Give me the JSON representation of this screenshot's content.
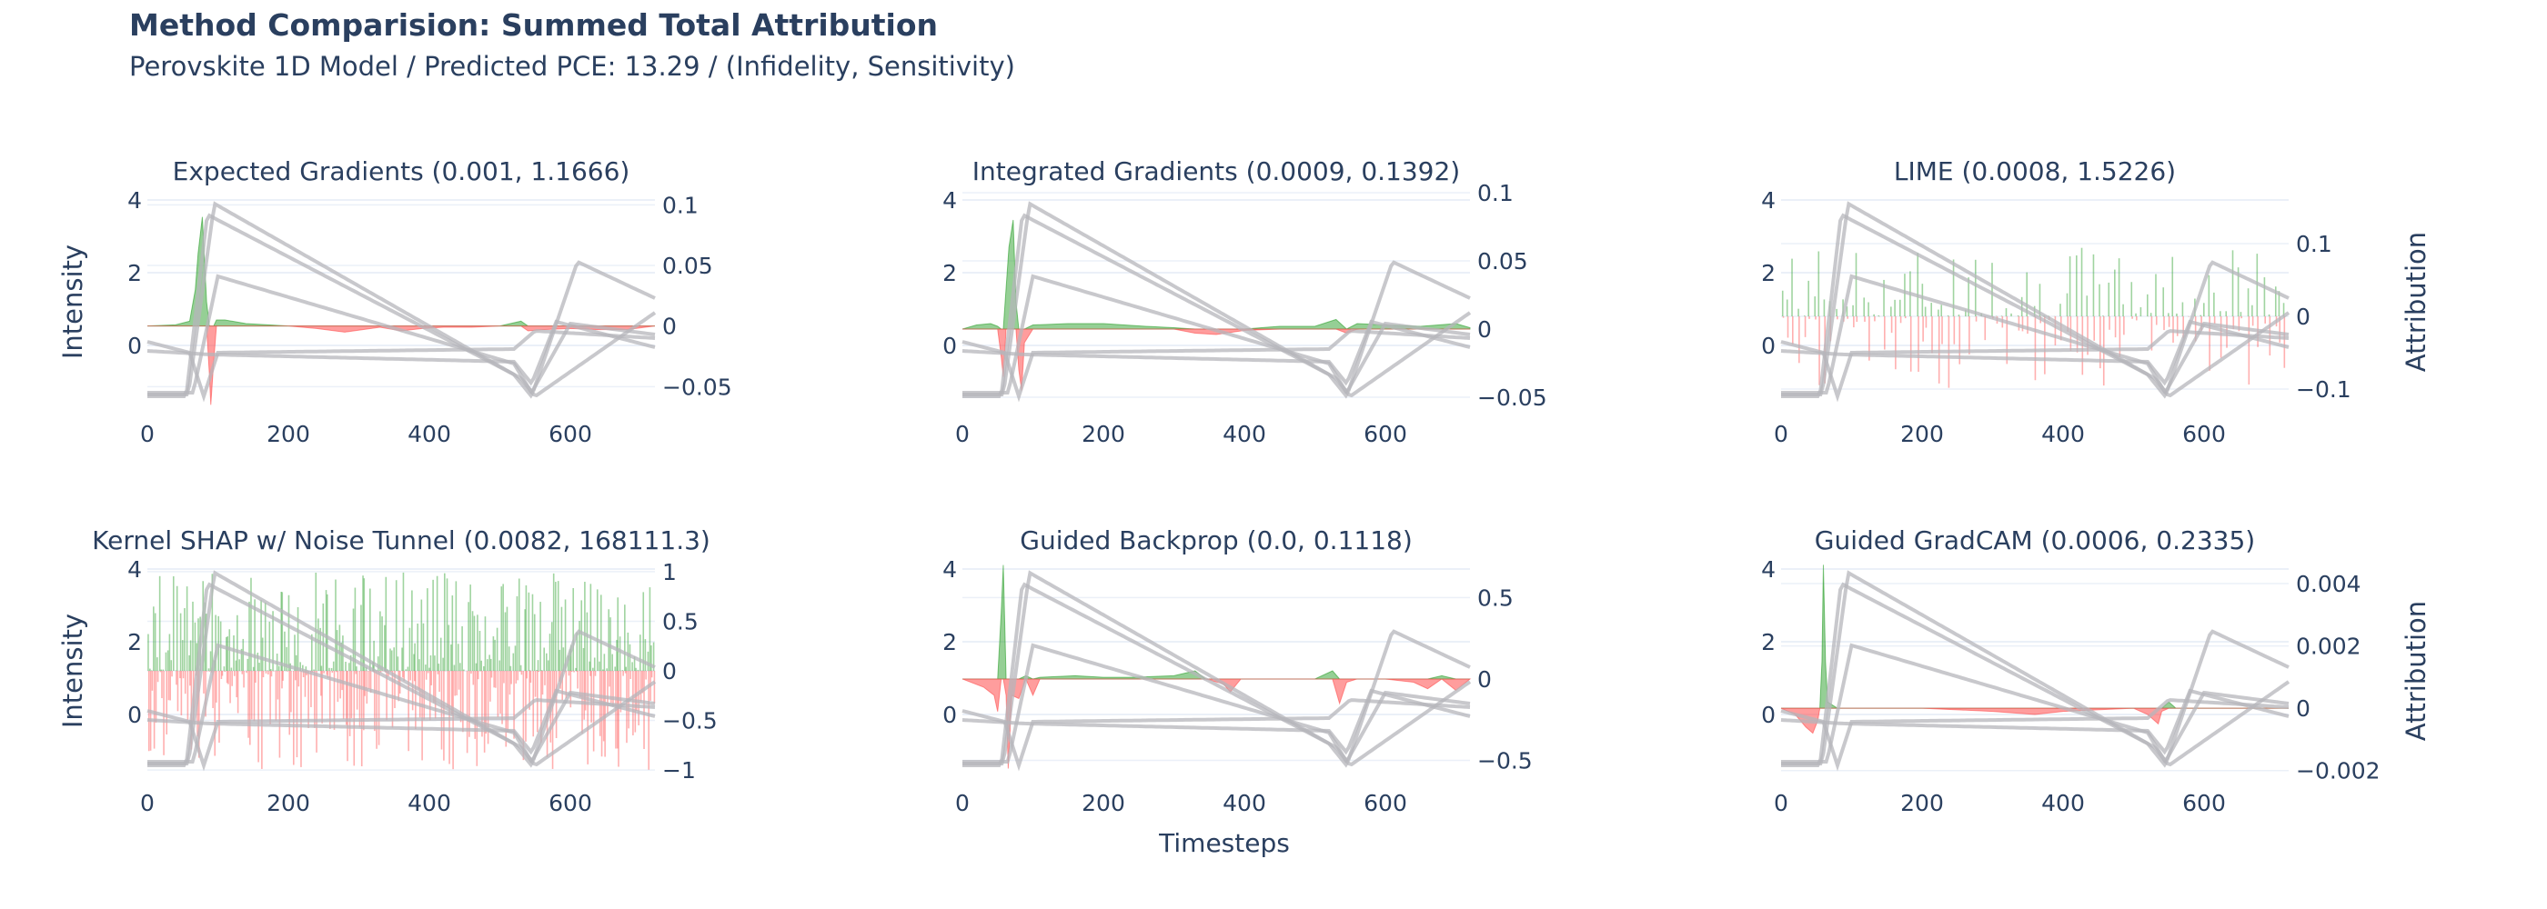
{
  "title": "Method Comparision: Summed Total Attribution",
  "subtitle": "Perovskite 1D Model / Predicted PCE: 13.29 / (Infidelity, Sensitivity)",
  "x_axis_label": "Timesteps",
  "colors": {
    "text": "#2a3f5f",
    "positive": "#2ca02c",
    "negative": "#ff4d4d",
    "curves": "#b5b5bb",
    "grid": "#ebf0f8"
  },
  "chart_data": [
    {
      "type": "area",
      "title": "Expected Gradients (0.001, 1.1666)",
      "left_ylabel": "Intensity",
      "right_ylabel": "",
      "x_ticks": [
        "0",
        "200",
        "400",
        "600"
      ],
      "left_ticks": [
        "4",
        "2",
        "0"
      ],
      "right_ticks": [
        "0.1",
        "0.05",
        "0",
        "−0.05"
      ],
      "xlim": [
        0,
        720
      ],
      "left_ylim": [
        -1.8,
        4.2
      ],
      "right_ylim": [
        -0.07,
        0.11
      ],
      "style": "area",
      "attribution_series": [
        [
          0,
          0
        ],
        [
          40,
          0.001
        ],
        [
          60,
          0.004
        ],
        [
          68,
          0.03
        ],
        [
          72,
          0.06
        ],
        [
          78,
          0.09
        ],
        [
          84,
          0.02
        ],
        [
          88,
          -0.04
        ],
        [
          90,
          -0.065
        ],
        [
          94,
          -0.03
        ],
        [
          98,
          0.005
        ],
        [
          110,
          0.005
        ],
        [
          140,
          0.002
        ],
        [
          200,
          0.0
        ],
        [
          240,
          -0.002
        ],
        [
          280,
          -0.005
        ],
        [
          330,
          -0.001
        ],
        [
          360,
          -0.004
        ],
        [
          390,
          -0.002
        ],
        [
          420,
          -0.001
        ],
        [
          460,
          -0.001
        ],
        [
          500,
          0.0
        ],
        [
          530,
          0.004
        ],
        [
          540,
          -0.004
        ],
        [
          560,
          -0.003
        ],
        [
          600,
          -0.002
        ],
        [
          640,
          -0.003
        ],
        [
          680,
          -0.003
        ],
        [
          720,
          0.0
        ]
      ]
    },
    {
      "type": "area",
      "title": "Integrated Gradients (0.0009, 0.1392)",
      "left_ylabel": "",
      "right_ylabel": "",
      "x_ticks": [
        "0",
        "200",
        "400",
        "600"
      ],
      "left_ticks": [
        "4",
        "2",
        "0"
      ],
      "right_ticks": [
        "0.1",
        "0.05",
        "0",
        "−0.05"
      ],
      "xlim": [
        0,
        720
      ],
      "left_ylim": [
        -1.8,
        4.2
      ],
      "right_ylim": [
        -0.06,
        0.1
      ],
      "style": "area",
      "attribution_series": [
        [
          0,
          0
        ],
        [
          20,
          0.003
        ],
        [
          40,
          0.004
        ],
        [
          50,
          0.002
        ],
        [
          55,
          -0.02
        ],
        [
          58,
          -0.035
        ],
        [
          62,
          0.03
        ],
        [
          66,
          0.06
        ],
        [
          72,
          0.08
        ],
        [
          76,
          0.02
        ],
        [
          80,
          -0.03
        ],
        [
          84,
          -0.045
        ],
        [
          88,
          -0.01
        ],
        [
          100,
          0.003
        ],
        [
          150,
          0.004
        ],
        [
          200,
          0.004
        ],
        [
          260,
          0.002
        ],
        [
          300,
          0.001
        ],
        [
          330,
          -0.003
        ],
        [
          360,
          -0.004
        ],
        [
          400,
          -0.001
        ],
        [
          450,
          0.002
        ],
        [
          500,
          0.002
        ],
        [
          530,
          0.007
        ],
        [
          545,
          -0.003
        ],
        [
          560,
          0.004
        ],
        [
          600,
          0.003
        ],
        [
          650,
          0.002
        ],
        [
          700,
          0.004
        ],
        [
          720,
          0.001
        ]
      ]
    },
    {
      "type": "area",
      "title": "LIME (0.0008, 1.5226)",
      "left_ylabel": "",
      "right_ylabel": "Attribution",
      "x_ticks": [
        "0",
        "200",
        "400",
        "600"
      ],
      "left_ticks": [
        "4",
        "2",
        "0"
      ],
      "right_ticks": [
        "0.1",
        "0",
        "−0.1"
      ],
      "xlim": [
        0,
        720
      ],
      "left_ylim": [
        -1.8,
        4.2
      ],
      "right_ylim": [
        -0.13,
        0.17
      ],
      "style": "spikes",
      "spike_amp_pos": 0.1,
      "spike_amp_neg": 0.1,
      "spike_count": 95,
      "seed": 7
    },
    {
      "type": "area",
      "title": "Kernel SHAP w/ Noise Tunnel (0.0082, 168111.3)",
      "left_ylabel": "Intensity",
      "right_ylabel": "",
      "x_ticks": [
        "0",
        "200",
        "400",
        "600"
      ],
      "left_ticks": [
        "4",
        "2",
        "0"
      ],
      "right_ticks": [
        "1",
        "0.5",
        "0",
        "−0.5",
        "−1"
      ],
      "xlim": [
        0,
        720
      ],
      "left_ylim": [
        -1.8,
        4.2
      ],
      "right_ylim": [
        -1.1,
        1.1
      ],
      "style": "spikes",
      "spike_amp_pos": 1.0,
      "spike_amp_neg": 1.0,
      "spike_count": 260,
      "seed": 13
    },
    {
      "type": "area",
      "title": "Guided Backprop (0.0, 0.1118)",
      "left_ylabel": "",
      "right_ylabel": "",
      "x_ticks": [
        "0",
        "200",
        "400",
        "600"
      ],
      "left_ticks": [
        "4",
        "2",
        "0"
      ],
      "right_ticks": [
        "0.5",
        "0",
        "−0.5"
      ],
      "xlim": [
        0,
        720
      ],
      "left_ylim": [
        -1.8,
        4.2
      ],
      "right_ylim": [
        -0.62,
        0.72
      ],
      "style": "area",
      "attribution_series": [
        [
          0,
          0
        ],
        [
          30,
          -0.05
        ],
        [
          45,
          -0.1
        ],
        [
          50,
          -0.2
        ],
        [
          55,
          0.4
        ],
        [
          58,
          0.7
        ],
        [
          62,
          -0.1
        ],
        [
          65,
          -0.55
        ],
        [
          70,
          -0.1
        ],
        [
          80,
          -0.12
        ],
        [
          90,
          0.02
        ],
        [
          100,
          -0.1
        ],
        [
          110,
          0.01
        ],
        [
          160,
          0.02
        ],
        [
          200,
          0.01
        ],
        [
          240,
          0.01
        ],
        [
          300,
          0.02
        ],
        [
          330,
          0.05
        ],
        [
          345,
          0.0
        ],
        [
          370,
          -0.03
        ],
        [
          380,
          -0.08
        ],
        [
          395,
          0.0
        ],
        [
          500,
          0.0
        ],
        [
          525,
          0.05
        ],
        [
          535,
          -0.15
        ],
        [
          545,
          -0.02
        ],
        [
          560,
          0.0
        ],
        [
          600,
          0.0
        ],
        [
          640,
          -0.02
        ],
        [
          660,
          -0.06
        ],
        [
          680,
          0.02
        ],
        [
          700,
          -0.07
        ],
        [
          720,
          0.0
        ]
      ]
    },
    {
      "type": "area",
      "title": "Guided GradCAM (0.0006, 0.2335)",
      "left_ylabel": "",
      "right_ylabel": "Attribution",
      "x_ticks": [
        "0",
        "200",
        "400",
        "600"
      ],
      "left_ticks": [
        "4",
        "2",
        "0"
      ],
      "right_ticks": [
        "0.004",
        "0.002",
        "0",
        "−0.002"
      ],
      "xlim": [
        0,
        720
      ],
      "left_ylim": [
        -1.8,
        4.2
      ],
      "right_ylim": [
        -0.0023,
        0.0047
      ],
      "style": "area",
      "attribution_series": [
        [
          0,
          0
        ],
        [
          20,
          -0.0002
        ],
        [
          35,
          -0.0006
        ],
        [
          45,
          -0.0008
        ],
        [
          52,
          -0.0004
        ],
        [
          55,
          0.0
        ],
        [
          58,
          0.0015
        ],
        [
          60,
          0.0046
        ],
        [
          63,
          0.0015
        ],
        [
          66,
          0.0002
        ],
        [
          80,
          0.0
        ],
        [
          200,
          0.0
        ],
        [
          300,
          -0.0001
        ],
        [
          360,
          -0.0002
        ],
        [
          400,
          -0.0001
        ],
        [
          500,
          0.0
        ],
        [
          520,
          -0.0002
        ],
        [
          535,
          -0.0005
        ],
        [
          540,
          -0.0001
        ],
        [
          550,
          0.0002
        ],
        [
          560,
          0.0
        ],
        [
          720,
          0.0
        ]
      ]
    }
  ]
}
